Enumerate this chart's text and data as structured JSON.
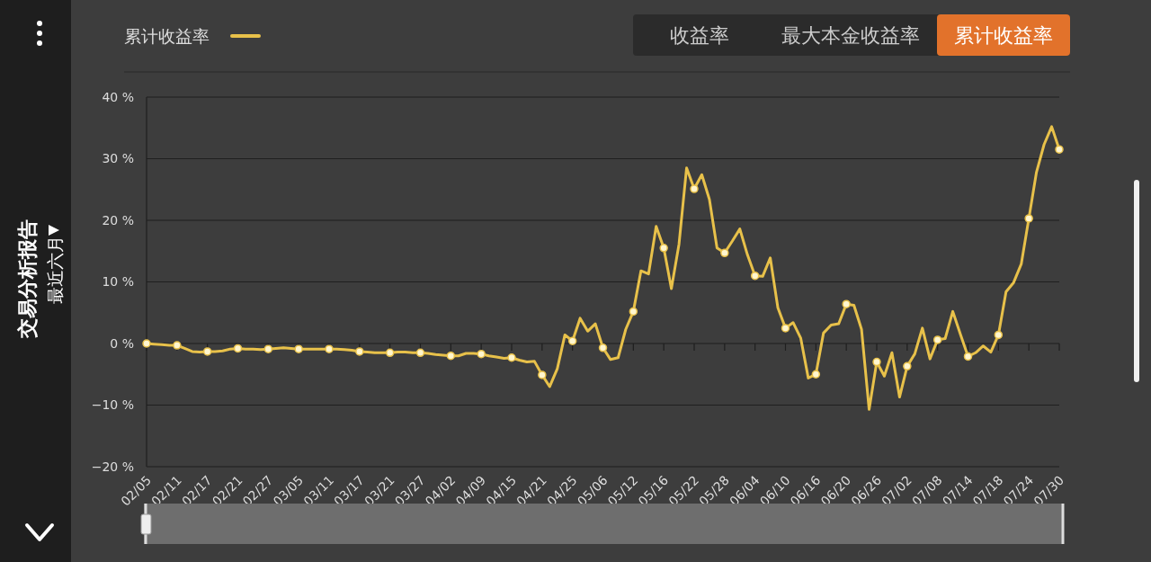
{
  "chart_data": {
    "type": "line",
    "title": "交易分析报告",
    "subtitle": "最近六月",
    "annotations": [
      "收益率",
      "最大本金收益率",
      "累计收益率"
    ],
    "categories": [
      "02/05",
      null,
      null,
      null,
      "02/11",
      null,
      null,
      null,
      "02/17",
      null,
      null,
      null,
      "02/21",
      null,
      null,
      null,
      "02/27",
      null,
      null,
      null,
      "03/05",
      null,
      null,
      null,
      "03/11",
      null,
      null,
      null,
      "03/17",
      null,
      null,
      null,
      "03/21",
      null,
      null,
      null,
      "03/27",
      null,
      null,
      null,
      "04/02",
      null,
      null,
      null,
      "04/09",
      null,
      null,
      null,
      "04/15",
      null,
      null,
      null,
      "04/21",
      null,
      null,
      null,
      "04/25",
      null,
      null,
      null,
      "05/06",
      null,
      null,
      null,
      "05/12",
      null,
      null,
      null,
      "05/16",
      null,
      null,
      null,
      "05/22",
      null,
      null,
      null,
      "05/28",
      null,
      null,
      null,
      "06/04",
      null,
      null,
      null,
      "06/10",
      null,
      null,
      null,
      "06/16",
      null,
      null,
      null,
      "06/20",
      null,
      null,
      null,
      "06/26",
      null,
      null,
      null,
      "07/02",
      null,
      null,
      null,
      "07/08",
      null,
      null,
      null,
      "07/14",
      null,
      null,
      null,
      "07/18",
      null,
      null,
      null,
      "07/24",
      null,
      null,
      null,
      "07/30"
    ],
    "series": [
      {
        "name": "累计收益率",
        "color": "#e8c14a",
        "values": [
          0,
          -0.1,
          -0.2,
          -0.3,
          -0.3,
          -0.8,
          -1.3,
          -1.4,
          -1.3,
          -1.3,
          -1.2,
          -0.9,
          -0.8,
          -0.9,
          -0.9,
          -1.0,
          -0.9,
          -0.8,
          -0.7,
          -0.8,
          -0.9,
          -0.9,
          -0.9,
          -0.9,
          -0.9,
          -0.9,
          -1.0,
          -1.1,
          -1.3,
          -1.4,
          -1.5,
          -1.5,
          -1.5,
          -1.4,
          -1.4,
          -1.5,
          -1.5,
          -1.6,
          -1.8,
          -1.9,
          -2.0,
          -2.0,
          -1.6,
          -1.6,
          -1.7,
          -2.0,
          -2.2,
          -2.4,
          -2.3,
          -2.7,
          -3.0,
          -2.9,
          -5.1,
          -7.0,
          -4.1,
          1.4,
          0.4,
          4.1,
          2.0,
          3.2,
          -0.7,
          -2.6,
          -2.3,
          2.3,
          5.2,
          11.8,
          11.3,
          19.0,
          15.5,
          8.9,
          16.1,
          28.5,
          25.1,
          27.4,
          23.4,
          15.5,
          14.7,
          16.6,
          18.6,
          14.4,
          11.0,
          10.9,
          13.9,
          5.8,
          2.5,
          3.4,
          0.9,
          -5.6,
          -5.0,
          1.7,
          3.0,
          3.2,
          6.4,
          6.2,
          2.3,
          -10.7,
          -3.0,
          -5.3,
          -1.5,
          -8.7,
          -3.7,
          -1.7,
          2.5,
          -2.5,
          0.6,
          0.8,
          5.2,
          1.5,
          -2.1,
          -1.5,
          -0.4,
          -1.4,
          1.4,
          8.4,
          9.9,
          12.9,
          20.3,
          27.8,
          32.3,
          35.2,
          31.5
        ]
      },
      {
        "type": "scatter",
        "marker": "circle",
        "color": "#fff6cf",
        "values": [
          0,
          null,
          null,
          null,
          -0.3,
          null,
          null,
          null,
          -1.3,
          null,
          null,
          null,
          -0.8,
          null,
          null,
          null,
          -0.9,
          null,
          null,
          null,
          -0.9,
          null,
          null,
          null,
          -0.9,
          null,
          null,
          null,
          -1.3,
          null,
          null,
          null,
          -1.5,
          null,
          null,
          null,
          -1.5,
          null,
          null,
          null,
          -2.0,
          null,
          null,
          null,
          -1.7,
          null,
          null,
          null,
          -2.3,
          null,
          null,
          null,
          -5.1,
          null,
          null,
          null,
          0.4,
          null,
          null,
          null,
          -0.7,
          null,
          null,
          null,
          5.2,
          null,
          null,
          null,
          15.5,
          null,
          null,
          null,
          25.1,
          null,
          null,
          null,
          14.7,
          null,
          null,
          null,
          11.0,
          null,
          null,
          null,
          2.5,
          null,
          null,
          null,
          -5.0,
          null,
          null,
          null,
          6.4,
          null,
          null,
          null,
          -3.0,
          null,
          null,
          null,
          -3.7,
          null,
          null,
          null,
          0.6,
          null,
          null,
          null,
          -2.1,
          null,
          null,
          null,
          1.4,
          null,
          null,
          null,
          20.3,
          null,
          null,
          null,
          31.5
        ]
      }
    ],
    "ylim": [
      -20,
      40
    ],
    "yticks": [
      {
        "value": -20,
        "label": "−20 %"
      },
      {
        "value": -10,
        "label": "−10 %"
      },
      {
        "value": 0,
        "label": "0 %"
      },
      {
        "value": 10,
        "label": "10 %"
      },
      {
        "value": 20,
        "label": "20 %"
      },
      {
        "value": 30,
        "label": "30 %"
      },
      {
        "value": 40,
        "label": "40 %"
      }
    ],
    "grid": "y",
    "legend": "top left",
    "line_style": "solid"
  }
}
